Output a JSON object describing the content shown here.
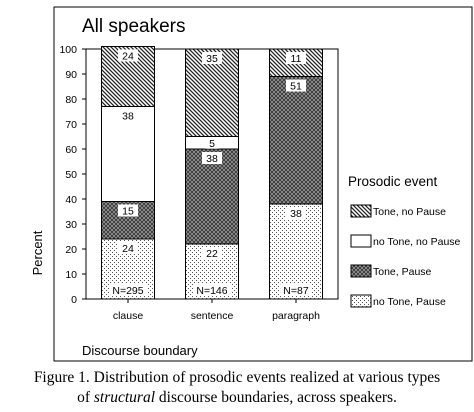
{
  "chart_data": {
    "type": "bar",
    "stacked": true,
    "title": "All speakers",
    "ylabel": "Percent",
    "xlabel": "Discourse boundary",
    "ylim": [
      0,
      100
    ],
    "yticks": [
      0,
      10,
      20,
      30,
      40,
      50,
      60,
      70,
      80,
      90,
      100
    ],
    "categories": [
      "clause",
      "sentence",
      "paragraph"
    ],
    "n_labels": [
      "N=295",
      "N=146",
      "N=87"
    ],
    "legend_title": "Prosodic event",
    "legend_position": "right",
    "series": [
      {
        "name": "no Tone, Pause",
        "values": [
          24,
          22,
          38
        ],
        "pattern": "dots"
      },
      {
        "name": "Tone, Pause",
        "values": [
          15,
          38,
          51
        ],
        "pattern": "cross"
      },
      {
        "name": "no Tone, no Pause",
        "values": [
          38,
          5,
          0
        ],
        "pattern": "white"
      },
      {
        "name": "Tone, no Pause",
        "values": [
          24,
          35,
          11
        ],
        "pattern": "hatch"
      }
    ],
    "legend_order": [
      "Tone, no Pause",
      "no Tone, no Pause",
      "Tone, Pause",
      "no Tone, Pause"
    ]
  },
  "caption": {
    "line1": "Figure 1. Distribution of prosodic events realized at various types",
    "line2_pre": "of ",
    "line2_em": "structural",
    "line2_post": " discourse boundaries, across speakers."
  }
}
